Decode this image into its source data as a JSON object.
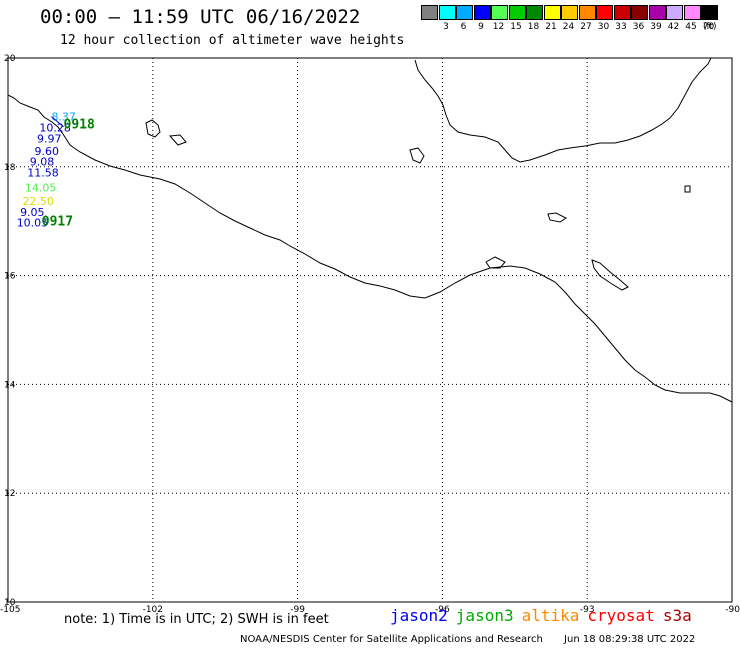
{
  "header": {
    "title": "00:00 – 11:59 UTC 06/16/2022",
    "subtitle": "12 hour collection of altimeter wave heights"
  },
  "legend": {
    "unit": "(ft)",
    "bins": [
      {
        "label": "3",
        "color": "#808080"
      },
      {
        "label": "6",
        "color": "#00ffff"
      },
      {
        "label": "9",
        "color": "#00aaff"
      },
      {
        "label": "12",
        "color": "#0000ff"
      },
      {
        "label": "15",
        "color": "#55ff55"
      },
      {
        "label": "18",
        "color": "#00cc00"
      },
      {
        "label": "21",
        "color": "#008800"
      },
      {
        "label": "24",
        "color": "#ffff00"
      },
      {
        "label": "27",
        "color": "#ffcc00"
      },
      {
        "label": "30",
        "color": "#ff8800"
      },
      {
        "label": "33",
        "color": "#ff0000"
      },
      {
        "label": "36",
        "color": "#cc0000"
      },
      {
        "label": "39",
        "color": "#880000"
      },
      {
        "label": "42",
        "color": "#aa00aa"
      },
      {
        "label": "45",
        "color": "#ccaaff"
      },
      {
        "label": "70",
        "color": "#ff88ff"
      },
      {
        "label": "",
        "color": "#000000"
      }
    ]
  },
  "map": {
    "lon_range": [
      -105,
      -90
    ],
    "lat_range": [
      10,
      20
    ],
    "lat_labels": [
      "20",
      "18",
      "16",
      "14",
      "12",
      "10"
    ],
    "lon_labels": [
      "-105",
      "-102",
      "-99",
      "-96",
      "-93",
      "-90"
    ],
    "grid": true
  },
  "observations": [
    {
      "value": "8.37",
      "color": "#00aaff",
      "lat": 18.85,
      "lon": -104.1
    },
    {
      "value": "10.28",
      "color": "#0000cc",
      "lat": 18.65,
      "lon": -104.35
    },
    {
      "value": "9.97",
      "color": "#0000cc",
      "lat": 18.45,
      "lon": -104.4
    },
    {
      "value": "9.60",
      "color": "#0000cc",
      "lat": 18.22,
      "lon": -104.45
    },
    {
      "value": "9.08",
      "color": "#0000cc",
      "lat": 18.02,
      "lon": -104.55
    },
    {
      "value": "11.58",
      "color": "#0000cc",
      "lat": 17.82,
      "lon": -104.6
    },
    {
      "value": "14.05",
      "color": "#55ee55",
      "lat": 17.55,
      "lon": -104.65
    },
    {
      "value": "22.50",
      "color": "#dddd00",
      "lat": 17.3,
      "lon": -104.7
    },
    {
      "value": "9.05",
      "color": "#0000cc",
      "lat": 17.1,
      "lon": -104.75
    },
    {
      "value": "10.05",
      "color": "#0000cc",
      "lat": 16.9,
      "lon": -104.82
    }
  ],
  "passes": [
    {
      "label": "0918",
      "lat": 18.7,
      "lon": -103.85
    },
    {
      "label": "0917",
      "lat": 16.92,
      "lon": -104.3
    }
  ],
  "note": "note: 1) Time is in UTC; 2) SWH is in feet",
  "satellites": [
    {
      "name": "jason2",
      "color": "#0000ff"
    },
    {
      "name": "jason3",
      "color": "#00aa00"
    },
    {
      "name": "altika",
      "color": "#ff8800"
    },
    {
      "name": "cryosat",
      "color": "#ff0000"
    },
    {
      "name": "s3a",
      "color": "#aa0000"
    }
  ],
  "footer": {
    "credit": "NOAA/NESDIS Center for Satellite Applications and Research",
    "timestamp": "Jun 18 08:29:38 UTC 2022"
  }
}
